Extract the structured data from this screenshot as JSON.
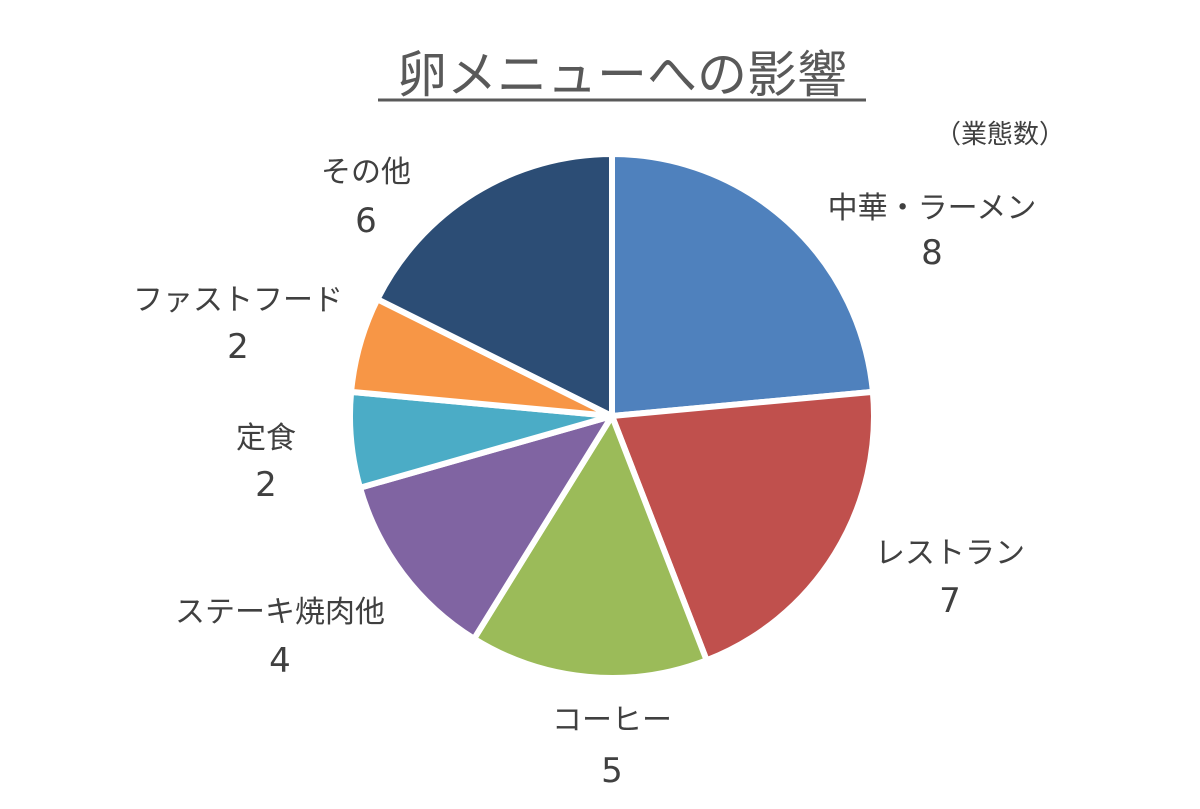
{
  "chart_data": {
    "type": "pie",
    "title": "卵メニューへの影響",
    "unit_label": "（業態数）",
    "categories": [
      "中華・ラーメン",
      "レストラン",
      "コーヒー",
      "ステーキ焼肉他",
      "定食",
      "ファストフード",
      "その他"
    ],
    "values": [
      8,
      7,
      5,
      4,
      2,
      2,
      6
    ],
    "colors": [
      "#4F81BD",
      "#C0504D",
      "#9BBB59",
      "#8064A2",
      "#4BACC6",
      "#F79646",
      "#2C4D75"
    ],
    "start_angle_deg": 0,
    "direction": "clockwise",
    "title_underline": true
  }
}
